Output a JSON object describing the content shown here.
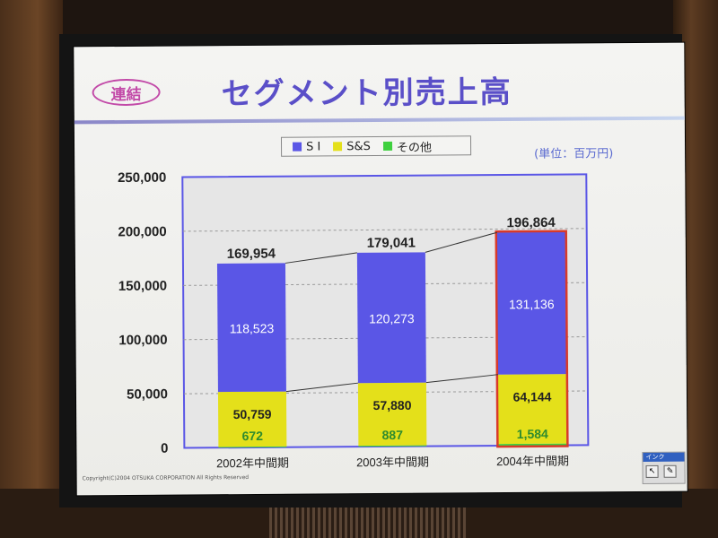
{
  "header": {
    "badge": "連結",
    "title": "セグメント別売上高"
  },
  "legend": {
    "items": [
      {
        "label": "S I",
        "color": "#5a56e6"
      },
      {
        "label": "S&S",
        "color": "#e4e01a"
      },
      {
        "label": "その他",
        "color": "#3ed03e"
      }
    ]
  },
  "unit_label": "(単位：百万円)",
  "footer": {
    "copyright": "Copyright(C)2004 OTSUKA CORPORATION All Rights Reserved",
    "ink_toolbar_title": "インク"
  },
  "chart_data": {
    "type": "bar",
    "stacked": true,
    "categories": [
      "2002年中間期",
      "2003年中間期",
      "2004年中間期"
    ],
    "series": [
      {
        "name": "その他",
        "values": [
          672,
          887,
          1584
        ],
        "color": "#3ed03e"
      },
      {
        "name": "S&S",
        "values": [
          50759,
          57880,
          64144
        ],
        "color": "#e4e01a"
      },
      {
        "name": "S I",
        "values": [
          118523,
          120273,
          131136
        ],
        "color": "#5a56e6"
      }
    ],
    "totals": [
      169954,
      179041,
      196864
    ],
    "value_labels": {
      "totals": [
        "169,954",
        "179,041",
        "196,864"
      ],
      "si": [
        "118,523",
        "120,273",
        "131,136"
      ],
      "ss": [
        "50,759",
        "57,880",
        "64,144"
      ],
      "other": [
        "672",
        "887",
        "1,584"
      ]
    },
    "ylim": [
      0,
      250000
    ],
    "yticks": [
      0,
      50000,
      100000,
      150000,
      200000,
      250000
    ],
    "ytick_labels": [
      "0",
      "50,000",
      "100,000",
      "150,000",
      "200,000",
      "250,000"
    ],
    "highlighted_category": "2004年中間期",
    "highlight_color": "#d83a2a",
    "grid": true,
    "legend_position": "top-center"
  }
}
